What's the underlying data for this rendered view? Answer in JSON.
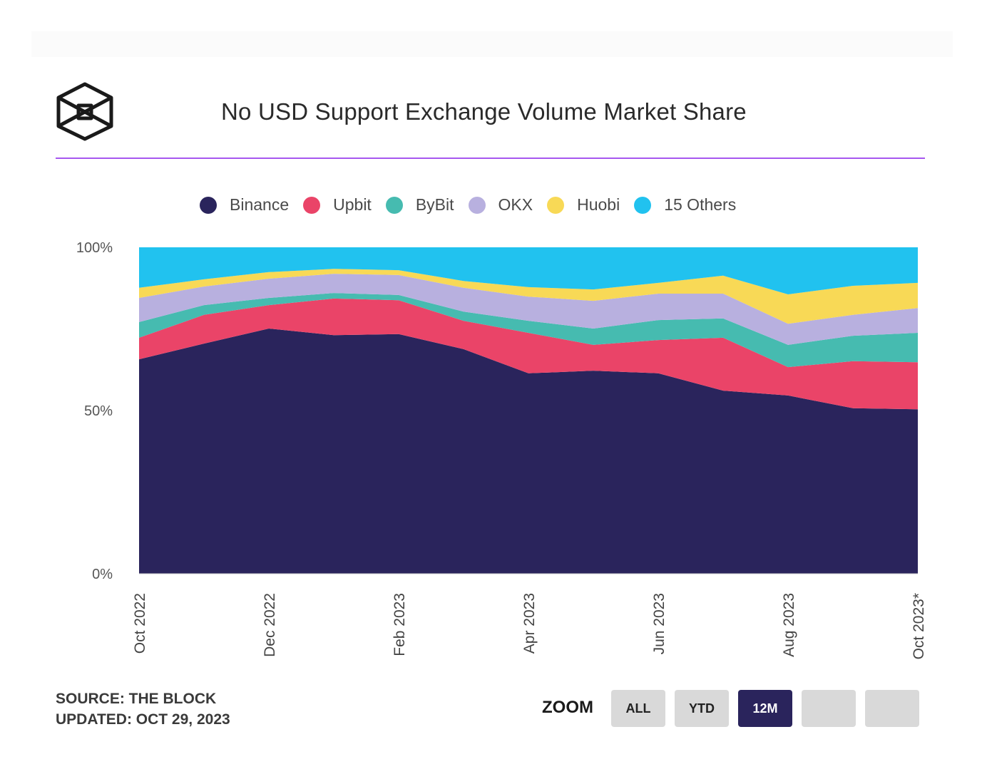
{
  "header": {
    "title": "No USD Support Exchange Volume Market Share",
    "logo": "the-block-cube-logo",
    "accent_color": "#a657f0"
  },
  "footer": {
    "source": "SOURCE: THE BLOCK",
    "updated": "UPDATED: OCT 29, 2023"
  },
  "zoom_controls": {
    "label": "ZOOM",
    "buttons": [
      {
        "label": "ALL",
        "active": false
      },
      {
        "label": "YTD",
        "active": false
      },
      {
        "label": "12M",
        "active": true
      },
      {
        "label": "",
        "active": false
      },
      {
        "label": "",
        "active": false
      }
    ]
  },
  "chart_data": {
    "type": "area",
    "stacked": true,
    "percent": true,
    "title": "No USD Support Exchange Volume Market Share",
    "xlabel": "",
    "ylabel": "",
    "ylim": [
      0,
      100
    ],
    "yticks": [
      0,
      50,
      100
    ],
    "ytick_labels": [
      "0%",
      "50%",
      "100%"
    ],
    "grid": false,
    "legend_position": "top-center",
    "x": [
      "Oct 2022",
      "Nov 2022",
      "Dec 2022",
      "Jan 2023",
      "Feb 2023",
      "Mar 2023",
      "Apr 2023",
      "May 2023",
      "Jun 2023",
      "Jul 2023",
      "Aug 2023",
      "Sep 2023",
      "Oct 2023*"
    ],
    "xtick_labels": [
      "Oct 2022",
      "Dec 2022",
      "Feb 2023",
      "Apr 2023",
      "Jun 2023",
      "Aug 2023",
      "Oct 2023*"
    ],
    "xtick_indices": [
      0,
      2,
      4,
      6,
      8,
      10,
      12
    ],
    "series": [
      {
        "name": "Binance",
        "color": "#2a245c",
        "values": [
          65.7,
          70.5,
          75.1,
          73.1,
          73.4,
          68.8,
          61.4,
          62.2,
          61.4,
          56.1,
          54.6,
          50.7,
          50.4
        ]
      },
      {
        "name": "Upbit",
        "color": "#ea4468",
        "values": [
          6.6,
          8.8,
          7.2,
          11.2,
          10.4,
          8.7,
          12.4,
          7.9,
          10.2,
          16.2,
          8.7,
          14.4,
          14.4
        ]
      },
      {
        "name": "ByBit",
        "color": "#46bbb0",
        "values": [
          4.8,
          3.0,
          2.2,
          1.7,
          1.6,
          2.8,
          3.7,
          5.0,
          6.1,
          5.9,
          6.8,
          7.8,
          9.0
        ]
      },
      {
        "name": "OKX",
        "color": "#b8b0df",
        "values": [
          7.4,
          5.7,
          5.9,
          5.9,
          6.1,
          7.3,
          7.4,
          8.5,
          8.1,
          7.6,
          6.5,
          6.4,
          7.6
        ]
      },
      {
        "name": "Huobi",
        "color": "#f8d956",
        "values": [
          3.1,
          2.2,
          2.0,
          1.5,
          1.5,
          2.1,
          2.9,
          3.5,
          3.3,
          5.5,
          9.0,
          8.9,
          7.7
        ]
      },
      {
        "name": "15 Others",
        "color": "#21c2ef",
        "values": [
          12.4,
          9.8,
          7.6,
          6.6,
          7.0,
          10.3,
          12.2,
          12.9,
          10.9,
          8.7,
          14.4,
          11.8,
          10.9
        ]
      }
    ]
  }
}
